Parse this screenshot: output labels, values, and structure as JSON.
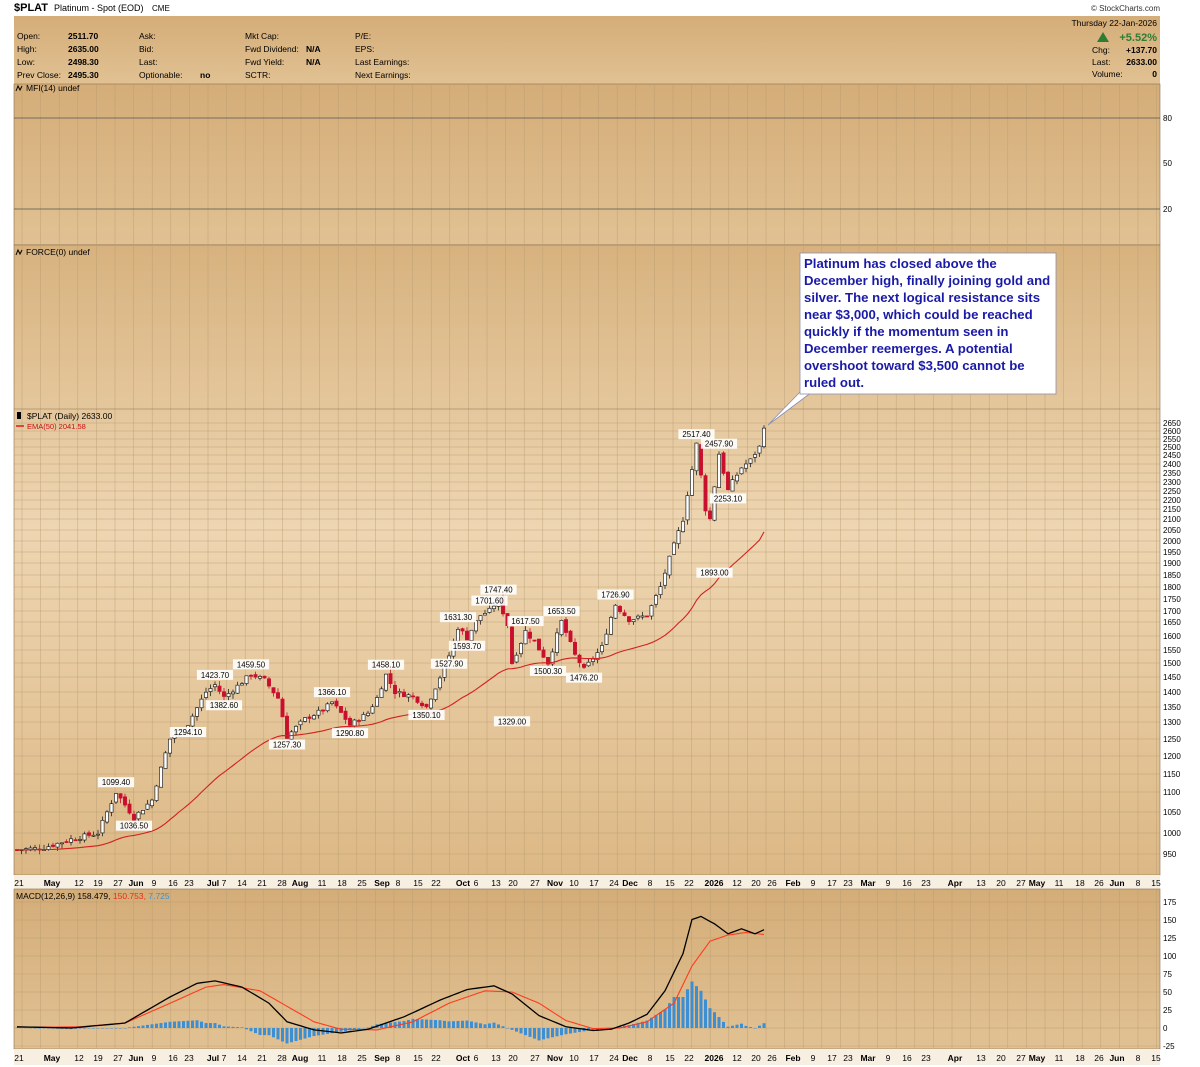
{
  "header": {
    "symbol": "$PLAT",
    "name": "Platinum - Spot (EOD)",
    "exchange": "CME",
    "watermark": "© StockCharts.com",
    "date": "Thursday  22-Jan-2026",
    "change_pct": "+5.52%",
    "chg_label": "Chg:",
    "chg_value": "+137.70",
    "last_label": "Last:",
    "last_value": "2633.00",
    "volume_label": "Volume:",
    "volume_value": "0",
    "quote": [
      {
        "label": "Open:",
        "value": "2511.70"
      },
      {
        "label": "High:",
        "value": "2635.00"
      },
      {
        "label": "Low:",
        "value": "2498.30"
      },
      {
        "label": "Prev Close:",
        "value": "2495.30"
      }
    ],
    "col2": [
      {
        "label": "Ask:",
        "value": ""
      },
      {
        "label": "Bid:",
        "value": ""
      },
      {
        "label": "Last:",
        "value": ""
      },
      {
        "label": "Optionable:",
        "value": "no"
      }
    ],
    "col3": [
      {
        "label": "Mkt Cap:",
        "value": ""
      },
      {
        "label": "Fwd Dividend:",
        "value": "N/A"
      },
      {
        "label": "Fwd Yield:",
        "value": "N/A"
      },
      {
        "label": "SCTR:",
        "value": ""
      }
    ],
    "col4": [
      {
        "label": "P/E:",
        "value": ""
      },
      {
        "label": "EPS:",
        "value": ""
      },
      {
        "label": "Last Earnings:",
        "value": ""
      },
      {
        "label": "Next Earnings:",
        "value": ""
      }
    ]
  },
  "mfi_label": "MFI(14) undef",
  "mfi_ticks": [
    "80",
    "50",
    "20"
  ],
  "force_label": "FORCE(0) undef",
  "price_label": "$PLAT (Daily) 2633.00",
  "ema_label": "EMA(50) 2041.58",
  "macd_label_prefix": "MACD(12,26,9) ",
  "macd_v1": "158.479,",
  "macd_v2": "150.753,",
  "macd_v3": "7.725",
  "annotation": "Platinum has closed above the December high, finally joining gold and silver. The next logical resistance sits near $3,000, which could be reached quickly if the momentum seen in December reemerges. A potential overshoot toward $3,500 cannot be ruled out.",
  "price_ticks": [
    "2650",
    "2600",
    "2550",
    "2500",
    "2450",
    "2400",
    "2350",
    "2300",
    "2250",
    "2200",
    "2150",
    "2100",
    "2050",
    "2000",
    "1950",
    "1900",
    "1850",
    "1800",
    "1750",
    "1700",
    "1650",
    "1600",
    "1550",
    "1500",
    "1450",
    "1400",
    "1350",
    "1300",
    "1250",
    "1200",
    "1150",
    "1100",
    "1050",
    "1000",
    "950"
  ],
  "macd_ticks": [
    "175",
    "150",
    "125",
    "100",
    "75",
    "50",
    "25",
    "0",
    "-25"
  ],
  "x_labels": [
    "21",
    "May",
    "12",
    "19",
    "27",
    "Jun",
    "9",
    "16",
    "23",
    "Jul",
    "7",
    "14",
    "21",
    "28",
    "Aug",
    "11",
    "18",
    "25",
    "Sep",
    "8",
    "15",
    "22",
    "Oct",
    "6",
    "13",
    "20",
    "27",
    "Nov",
    "10",
    "17",
    "24",
    "Dec",
    "8",
    "15",
    "22",
    "2026",
    "12",
    "20",
    "26",
    "Feb",
    "9",
    "17",
    "23",
    "Mar",
    "9",
    "16",
    "23",
    "Apr",
    "13",
    "20",
    "27",
    "May",
    "11",
    "18",
    "26",
    "Jun",
    "8",
    "15"
  ],
  "colors": {
    "up": "#222222",
    "down": "#c8102e",
    "ema": "#d42020",
    "macd": "#000000",
    "signal": "#ff3b1f",
    "hist": "#3d8fd4",
    "accent": "#2e7d32",
    "note": "#1a1aa8"
  },
  "chart_data": {
    "type": "candlestick",
    "title": "$PLAT Platinum - Spot (EOD)",
    "period": "Apr 2025 - 22 Jan 2026, daily",
    "ylim": [
      900,
      2680
    ],
    "price_path": [
      [
        0,
        960
      ],
      [
        6,
        965
      ],
      [
        12,
        985
      ],
      [
        18,
        1000
      ],
      [
        22,
        1099.4
      ],
      [
        26,
        1036.5
      ],
      [
        30,
        1080
      ],
      [
        34,
        1250
      ],
      [
        38,
        1294.1
      ],
      [
        42,
        1400
      ],
      [
        44,
        1423.7
      ],
      [
        46,
        1382.6
      ],
      [
        49,
        1420
      ],
      [
        52,
        1459.5
      ],
      [
        55,
        1440
      ],
      [
        58,
        1380
      ],
      [
        60,
        1257.3
      ],
      [
        64,
        1310
      ],
      [
        68,
        1340
      ],
      [
        70,
        1366.1
      ],
      [
        72,
        1330
      ],
      [
        74,
        1290.8
      ],
      [
        78,
        1330
      ],
      [
        80,
        1380
      ],
      [
        82,
        1458.1
      ],
      [
        84,
        1400
      ],
      [
        88,
        1385
      ],
      [
        91,
        1350.1
      ],
      [
        94,
        1450
      ],
      [
        96,
        1527.9
      ],
      [
        98,
        1631.3
      ],
      [
        100,
        1593.7
      ],
      [
        103,
        1680
      ],
      [
        105,
        1701.6
      ],
      [
        107,
        1747.4
      ],
      [
        109,
        1640
      ],
      [
        110,
        1500
      ],
      [
        113,
        1617.5
      ],
      [
        115,
        1580
      ],
      [
        118,
        1500.3
      ],
      [
        121,
        1653.5
      ],
      [
        124,
        1530
      ],
      [
        126,
        1476.2
      ],
      [
        130,
        1560
      ],
      [
        133,
        1726.9
      ],
      [
        136,
        1660
      ],
      [
        140,
        1680
      ],
      [
        143,
        1800
      ],
      [
        146,
        1980
      ],
      [
        148,
        2100
      ],
      [
        150,
        2370
      ],
      [
        151,
        2517.4
      ],
      [
        153,
        2150
      ],
      [
        154,
        2100
      ],
      [
        156,
        2457.9
      ],
      [
        158,
        2253.1
      ],
      [
        159,
        2300
      ],
      [
        161,
        2380
      ],
      [
        163,
        2420
      ],
      [
        165,
        2500
      ],
      [
        166,
        2633
      ]
    ],
    "ema50_end": 2041.58,
    "labeled_points": [
      {
        "label": "1099.40",
        "type": "high"
      },
      {
        "label": "1036.50",
        "type": "low"
      },
      {
        "label": "1423.70",
        "type": "high"
      },
      {
        "label": "1294.10",
        "type": "low"
      },
      {
        "label": "1459.50",
        "type": "high"
      },
      {
        "label": "1382.60",
        "type": "low"
      },
      {
        "label": "1257.30",
        "type": "low"
      },
      {
        "label": "1366.10",
        "type": "high"
      },
      {
        "label": "1290.80",
        "type": "low"
      },
      {
        "label": "1458.10",
        "type": "high"
      },
      {
        "label": "1350.10",
        "type": "low"
      },
      {
        "label": "1527.90",
        "type": "low"
      },
      {
        "label": "1631.30",
        "type": "high"
      },
      {
        "label": "1593.70",
        "type": "low"
      },
      {
        "label": "1701.60",
        "type": "high"
      },
      {
        "label": "1747.40",
        "type": "high"
      },
      {
        "label": "1329.00",
        "type": "low"
      },
      {
        "label": "1617.50",
        "type": "high"
      },
      {
        "label": "1500.30",
        "type": "low"
      },
      {
        "label": "1653.50",
        "type": "high"
      },
      {
        "label": "1476.20",
        "type": "low"
      },
      {
        "label": "1726.90",
        "type": "high"
      },
      {
        "label": "2517.40",
        "type": "high"
      },
      {
        "label": "2457.90",
        "type": "high"
      },
      {
        "label": "1893.00",
        "type": "low"
      },
      {
        "label": "2253.10",
        "type": "low"
      }
    ],
    "macd_path": [
      [
        0,
        2
      ],
      [
        12,
        0
      ],
      [
        24,
        8
      ],
      [
        34,
        50
      ],
      [
        40,
        72
      ],
      [
        44,
        76
      ],
      [
        50,
        66
      ],
      [
        56,
        40
      ],
      [
        60,
        10
      ],
      [
        66,
        -3
      ],
      [
        72,
        -8
      ],
      [
        78,
        -2
      ],
      [
        86,
        18
      ],
      [
        94,
        45
      ],
      [
        100,
        62
      ],
      [
        106,
        68
      ],
      [
        110,
        55
      ],
      [
        116,
        20
      ],
      [
        122,
        2
      ],
      [
        128,
        -4
      ],
      [
        132,
        -2
      ],
      [
        136,
        8
      ],
      [
        140,
        22
      ],
      [
        144,
        60
      ],
      [
        148,
        120
      ],
      [
        150,
        175
      ],
      [
        152,
        180
      ],
      [
        155,
        168
      ],
      [
        158,
        152
      ],
      [
        161,
        160
      ],
      [
        164,
        152
      ],
      [
        166,
        158.479
      ]
    ],
    "signal_path": [
      [
        0,
        1
      ],
      [
        14,
        2
      ],
      [
        24,
        8
      ],
      [
        34,
        40
      ],
      [
        42,
        66
      ],
      [
        46,
        70
      ],
      [
        54,
        60
      ],
      [
        60,
        35
      ],
      [
        66,
        10
      ],
      [
        72,
        -2
      ],
      [
        80,
        -3
      ],
      [
        88,
        10
      ],
      [
        96,
        40
      ],
      [
        104,
        60
      ],
      [
        110,
        58
      ],
      [
        116,
        40
      ],
      [
        122,
        12
      ],
      [
        128,
        -1
      ],
      [
        134,
        0
      ],
      [
        140,
        10
      ],
      [
        146,
        40
      ],
      [
        150,
        100
      ],
      [
        154,
        140
      ],
      [
        158,
        150
      ],
      [
        162,
        154
      ],
      [
        166,
        150.753
      ]
    ],
    "hist_end": 7.725,
    "xlabel": "",
    "ylabel": ""
  }
}
